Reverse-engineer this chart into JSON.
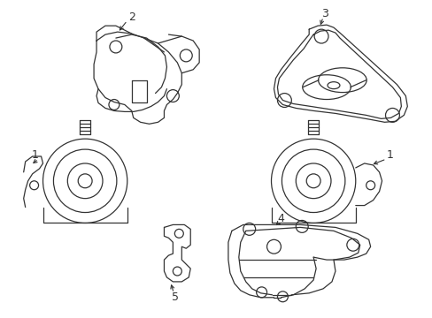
{
  "background_color": "#ffffff",
  "line_color": "#333333",
  "line_width": 0.9,
  "fig_width": 4.89,
  "fig_height": 3.6,
  "dpi": 100
}
